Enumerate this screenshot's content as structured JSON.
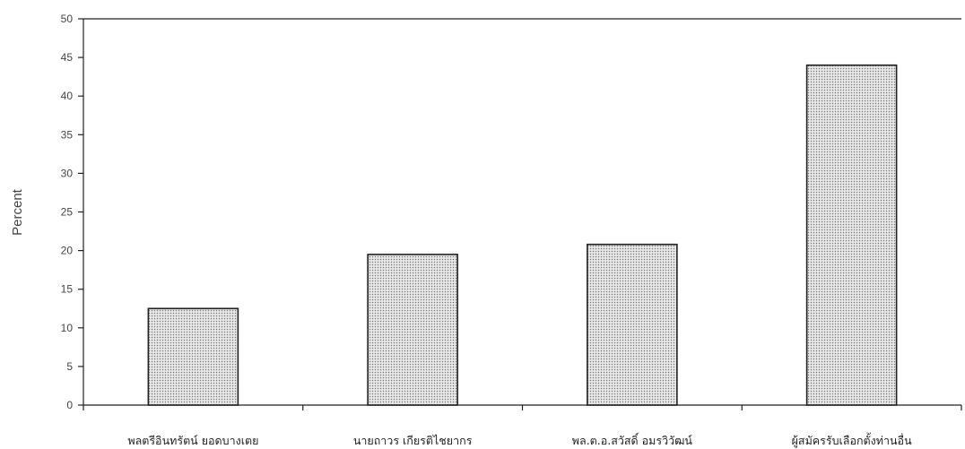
{
  "chart_data": {
    "type": "bar",
    "categories": [
      "พลตรีอินทรัตน์  ยอดบางเตย",
      "นายถาวร  เกียรติไชยากร",
      "พล.ต.อ.สวัสดิ์  อมรวิวัฒน์",
      "ผู้สมัครรับเลือกตั้งท่านอื่น"
    ],
    "values": [
      12.5,
      19.5,
      20.8,
      44.0
    ],
    "title": "",
    "xlabel": "",
    "ylabel": "Percent",
    "ylim": [
      0,
      50
    ],
    "yticks": [
      0,
      5,
      10,
      15,
      20,
      25,
      30,
      35,
      40,
      45,
      50
    ],
    "grid": false,
    "legend": "none",
    "bar_fill": "#d9d9d9",
    "bar_stroke": "#222222",
    "axis_color": "#222222"
  }
}
